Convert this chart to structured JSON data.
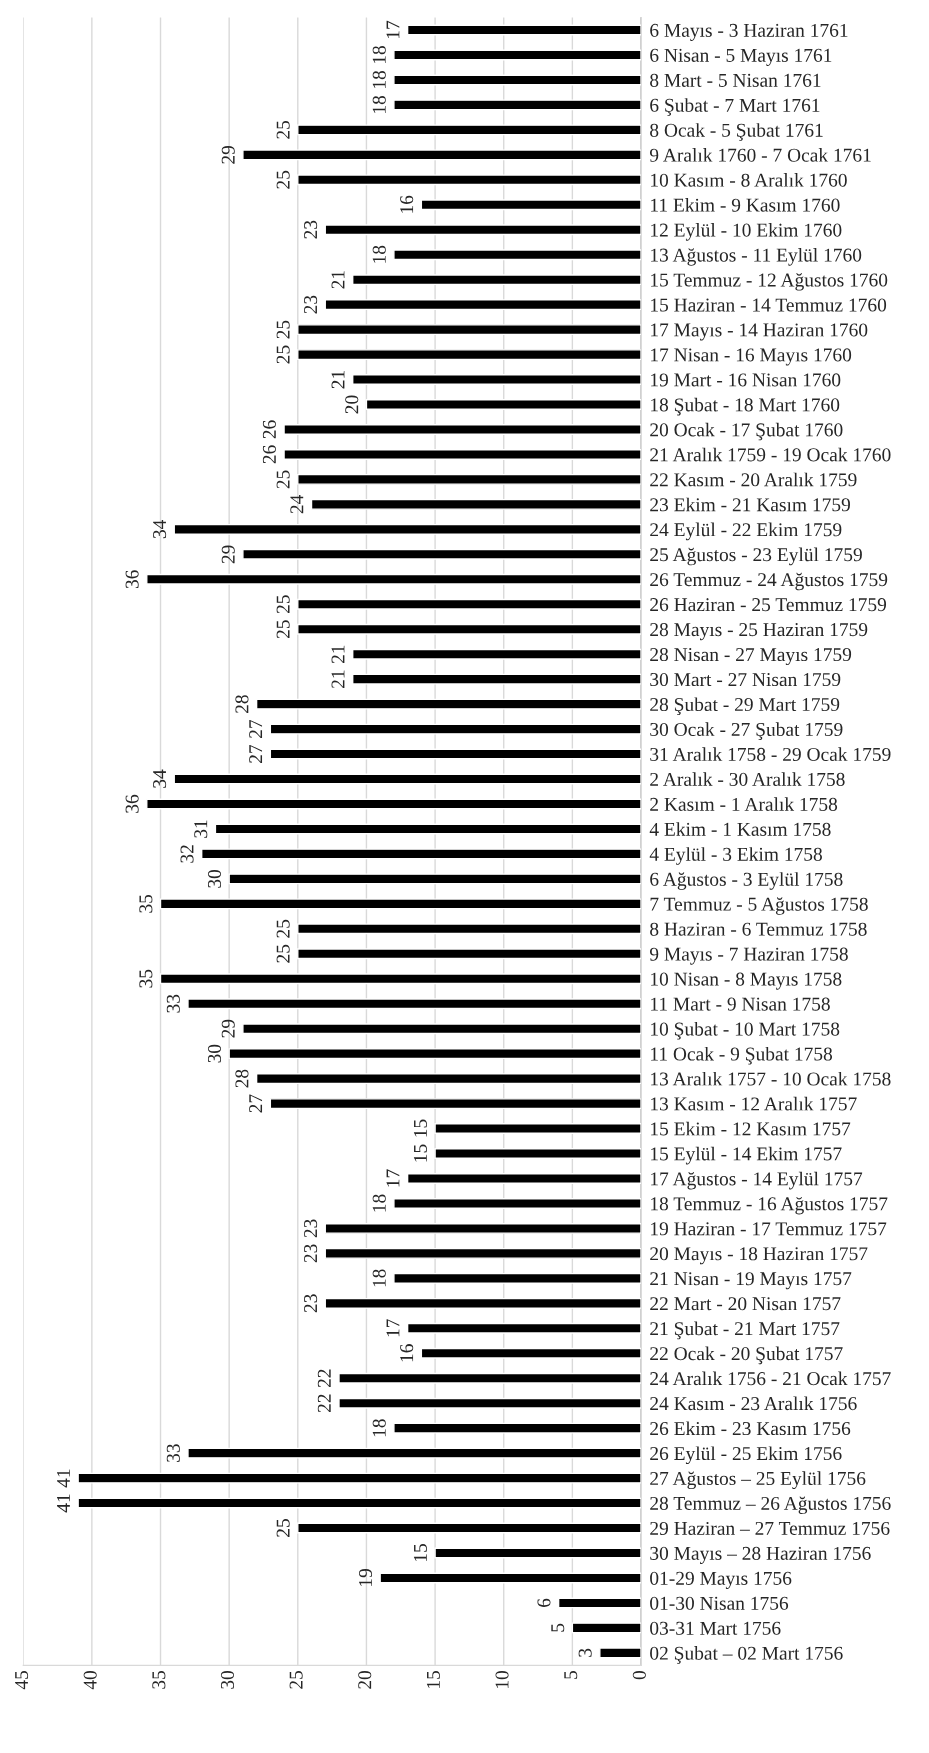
{
  "chart_data": {
    "type": "bar",
    "orientation": "horizontal",
    "categories": [
      "6 Mayıs - 3 Haziran 1761",
      "6 Nisan - 5 Mayıs 1761",
      "8 Mart - 5 Nisan 1761",
      "6 Şubat - 7 Mart 1761",
      "8 Ocak - 5 Şubat 1761",
      "9 Aralık 1760 - 7 Ocak 1761",
      "10 Kasım - 8 Aralık 1760",
      "11 Ekim - 9 Kasım 1760",
      "12 Eylül - 10 Ekim 1760",
      "13 Ağustos - 11 Eylül 1760",
      "15 Temmuz - 12 Ağustos 1760",
      "15 Haziran - 14 Temmuz 1760",
      "17 Mayıs - 14 Haziran 1760",
      "17 Nisan - 16 Mayıs 1760",
      "19 Mart - 16 Nisan 1760",
      "18 Şubat - 18 Mart 1760",
      "20 Ocak - 17 Şubat 1760",
      "21 Aralık 1759 - 19 Ocak 1760",
      "22 Kasım - 20 Aralık 1759",
      "23 Ekim - 21 Kasım 1759",
      "24 Eylül - 22 Ekim 1759",
      "25 Ağustos - 23 Eylül 1759",
      "26 Temmuz - 24 Ağustos 1759",
      "26 Haziran - 25 Temmuz 1759",
      "28 Mayıs - 25 Haziran 1759",
      "28 Nisan - 27 Mayıs 1759",
      "30 Mart - 27 Nisan 1759",
      "28 Şubat - 29 Mart 1759",
      "30 Ocak - 27 Şubat 1759",
      "31 Aralık 1758 - 29 Ocak 1759",
      "2 Aralık - 30 Aralık 1758",
      "2 Kasım - 1 Aralık 1758",
      "4 Ekim - 1 Kasım 1758",
      "4 Eylül - 3 Ekim 1758",
      "6 Ağustos - 3 Eylül 1758",
      "7 Temmuz - 5 Ağustos 1758",
      "8 Haziran - 6 Temmuz 1758",
      "9 Mayıs - 7 Haziran 1758",
      "10 Nisan - 8 Mayıs 1758",
      "11 Mart - 9 Nisan 1758",
      "10 Şubat - 10 Mart 1758",
      "11 Ocak - 9 Şubat 1758",
      "13 Aralık 1757 - 10 Ocak 1758",
      "13 Kasım - 12 Aralık 1757",
      "15 Ekim - 12 Kasım 1757",
      "15 Eylül - 14 Ekim 1757",
      "17 Ağustos - 14 Eylül 1757",
      "18 Temmuz - 16 Ağustos 1757",
      "19 Haziran - 17 Temmuz 1757",
      "20 Mayıs - 18 Haziran 1757",
      "21 Nisan - 19 Mayıs 1757",
      "22 Mart - 20 Nisan 1757",
      "21 Şubat - 21 Mart 1757",
      "22 Ocak - 20 Şubat 1757",
      "24 Aralık 1756 - 21 Ocak 1757",
      "24 Kasım - 23 Aralık 1756",
      "26 Ekim - 23 Kasım 1756",
      "26 Eylül - 25 Ekim 1756",
      "27 Ağustos – 25 Eylül 1756",
      "28 Temmuz – 26 Ağustos 1756",
      "29 Haziran – 27 Temmuz 1756",
      "30 Mayıs – 28 Haziran 1756",
      "01-29 Mayıs 1756",
      "01-30 Nisan 1756",
      "03-31 Mart 1756",
      "02 Şubat – 02 Mart 1756"
    ],
    "values": [
      17,
      18,
      18,
      18,
      25,
      29,
      25,
      16,
      23,
      18,
      21,
      23,
      25,
      25,
      21,
      20,
      26,
      26,
      25,
      24,
      34,
      29,
      36,
      25,
      25,
      21,
      21,
      28,
      27,
      27,
      34,
      36,
      31,
      32,
      30,
      35,
      25,
      25,
      35,
      33,
      29,
      30,
      28,
      27,
      15,
      15,
      17,
      18,
      23,
      23,
      18,
      23,
      17,
      16,
      22,
      22,
      18,
      33,
      41,
      41,
      25,
      15,
      19,
      6,
      5,
      3
    ],
    "color": "#000000",
    "xlim": [
      45,
      0
    ],
    "xticks": [
      0,
      5,
      10,
      15,
      20,
      25,
      30,
      35,
      40,
      45
    ],
    "grid": "x",
    "data_labels": true
  }
}
